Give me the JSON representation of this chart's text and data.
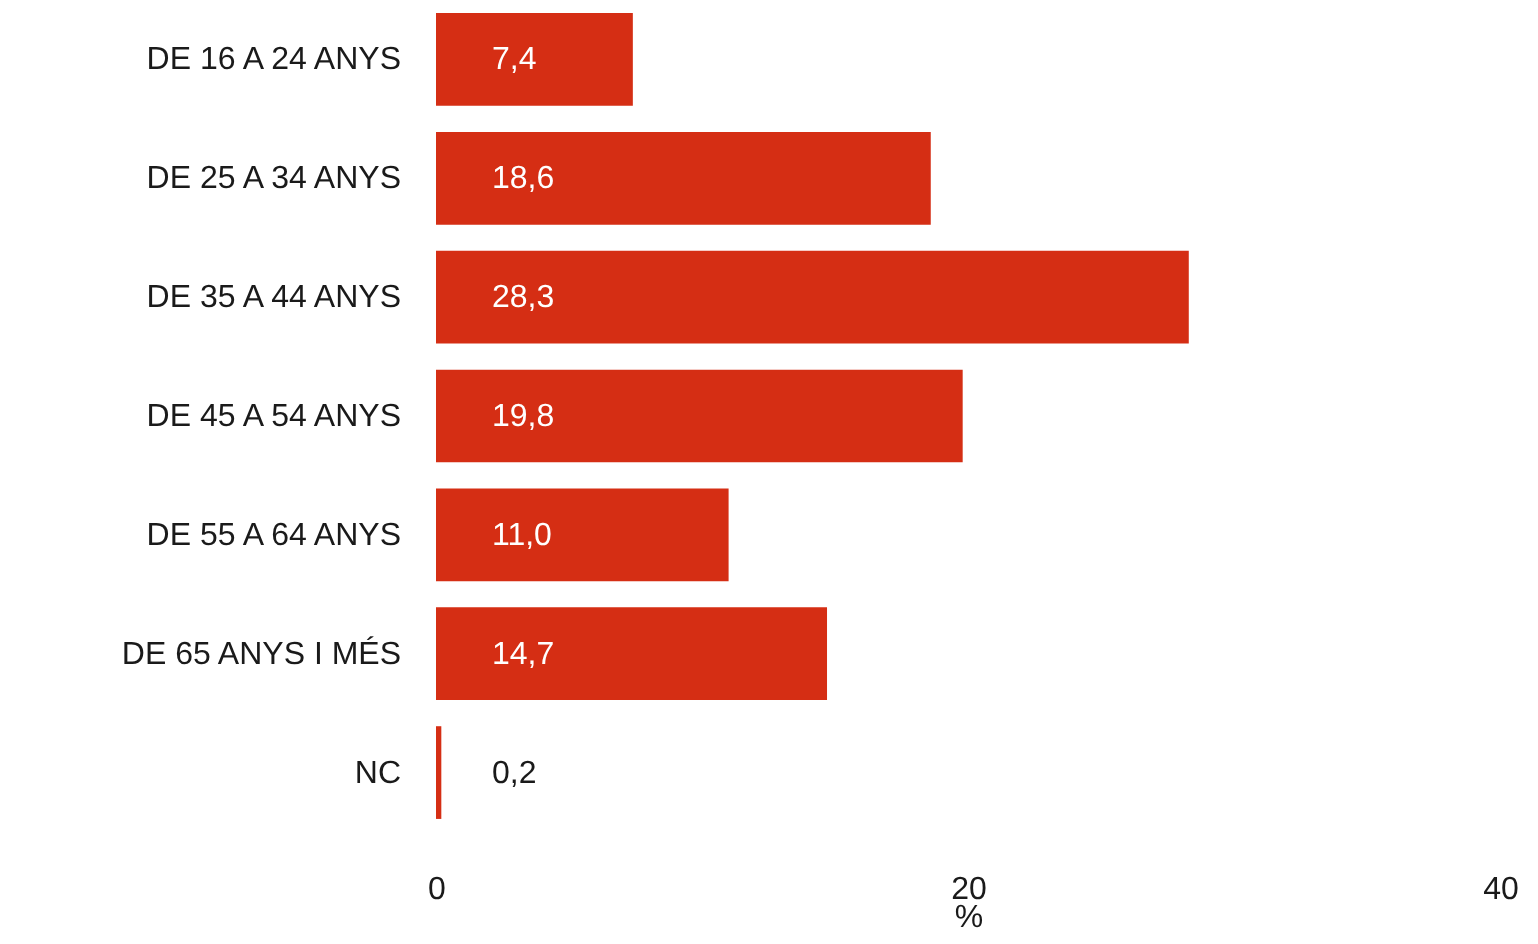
{
  "chart_data": {
    "type": "bar",
    "orientation": "horizontal",
    "xlabel": "%",
    "categories": [
      "DE 16 A 24 ANYS",
      "DE 25 A 34 ANYS",
      "DE 35 A 44 ANYS",
      "DE 45 A 54 ANYS",
      "DE 55 A 64 ANYS",
      "DE 65 ANYS I MÉS",
      "NC"
    ],
    "values": [
      7.4,
      18.6,
      28.3,
      19.8,
      11.0,
      14.7,
      0.2
    ],
    "value_labels": [
      "7,4",
      "18,6",
      "28,3",
      "19,8",
      "11,0",
      "14,7",
      "0,2"
    ],
    "color": "#d52e14",
    "xlim": [
      0,
      40
    ],
    "xticks": [
      0,
      20,
      40
    ],
    "grid": false
  }
}
